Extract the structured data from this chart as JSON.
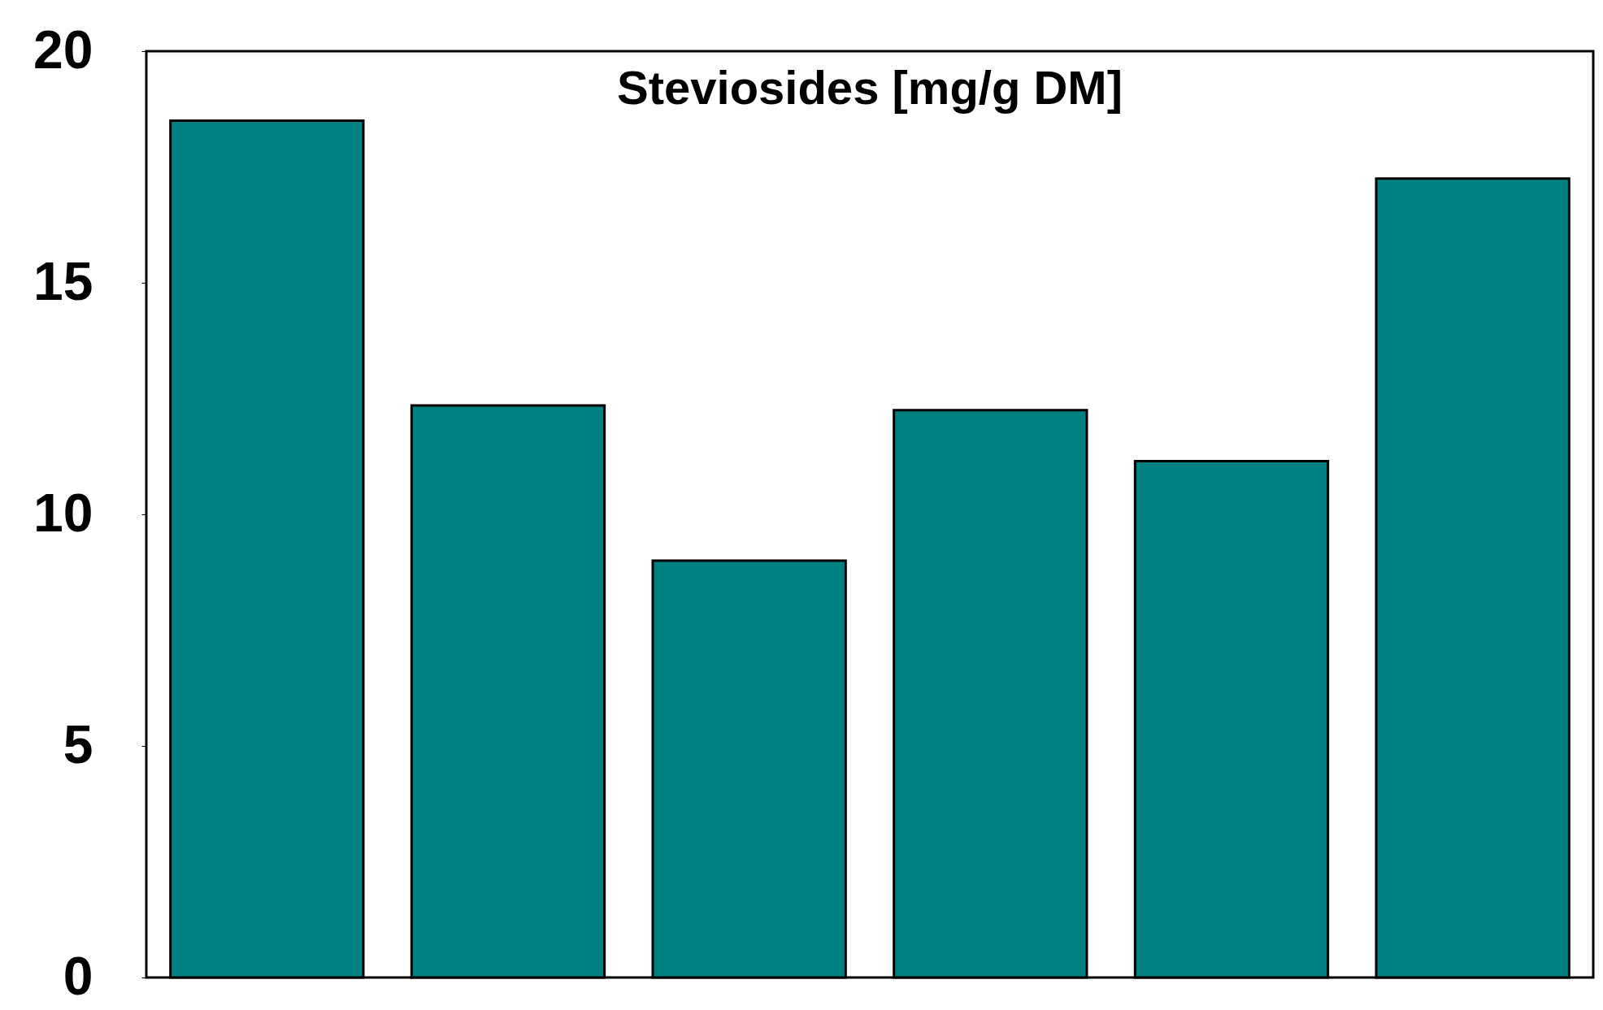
{
  "chart_data": {
    "type": "bar",
    "title": "Steviosides [mg/g DM]",
    "categories": [
      null,
      null,
      null,
      null,
      null,
      null
    ],
    "values": [
      18.5,
      12.35,
      9.0,
      12.25,
      11.15,
      17.25
    ],
    "color": "#008080",
    "ylim": [
      0,
      20
    ],
    "yticks": [
      0,
      5,
      10,
      15,
      20
    ],
    "tick_labels": "y",
    "grid": false
  }
}
